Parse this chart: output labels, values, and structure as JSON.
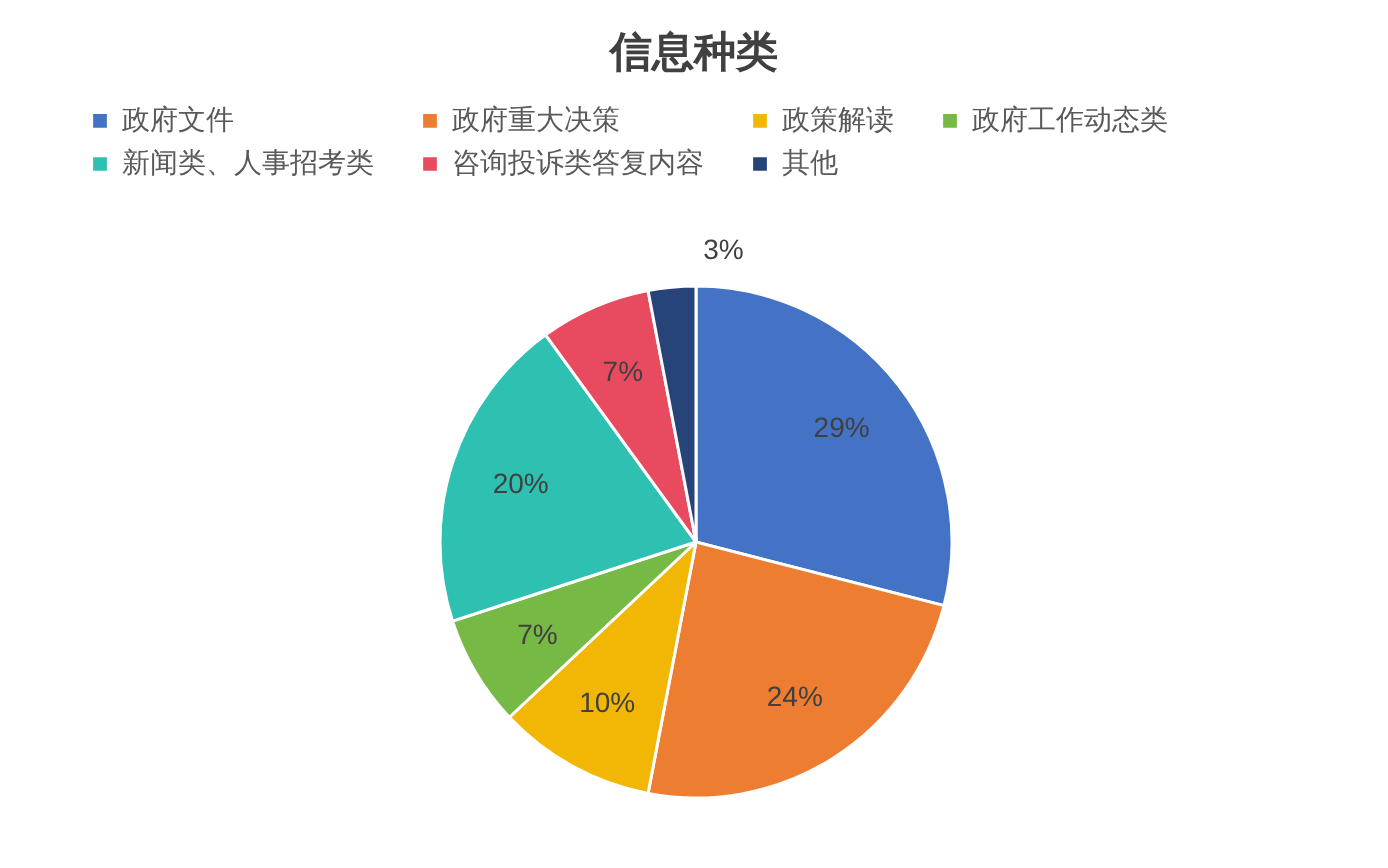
{
  "chart_data": {
    "type": "pie",
    "title": "信息种类",
    "categories": [
      "政府文件",
      "政府重大决策",
      "政策解读",
      "政府工作动态类",
      "新闻类、人事招考类",
      "咨询投诉类答复内容",
      "其他"
    ],
    "values": [
      29,
      24,
      10,
      7,
      20,
      7,
      3
    ],
    "value_labels": [
      "29%",
      "24%",
      "10%",
      "7%",
      "20%",
      "7%",
      "3%"
    ],
    "colors": [
      "#4472c4",
      "#ed7d31",
      "#f2b705",
      "#76b944",
      "#2ec0b0",
      "#e84a5f",
      "#264478"
    ],
    "legend": "top"
  }
}
